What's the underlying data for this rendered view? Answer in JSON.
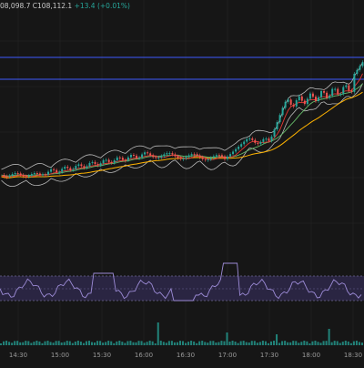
{
  "header": {
    "ohlc_text": "08,098.7 C108,112.1",
    "change_text": "+13.4 (+0.01%)"
  },
  "time_axis": {
    "labels": [
      "14:30",
      "15:00",
      "15:30",
      "16:00",
      "16:30",
      "17:00",
      "17:30",
      "18:00",
      "18:30"
    ]
  },
  "colors": {
    "background": "#161616",
    "grid": "#262626",
    "horizontal_line": "#3d5afe",
    "candle_up": "#26a69a",
    "candle_down": "#ef5350",
    "bb_line": "#b8b8b8",
    "ma_red": "#e53935",
    "ma_orange": "#ffb300",
    "ma_green": "#66bb6a",
    "rsi_line": "#9c8bd6",
    "rsi_band": "#2a2542",
    "volume": "#26a69a"
  }
}
